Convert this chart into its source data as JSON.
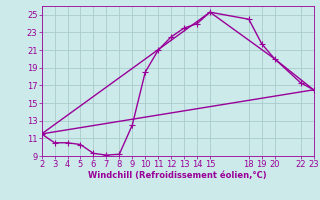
{
  "background_color": "#cceaea",
  "grid_color": "#aacccc",
  "line_color": "#990099",
  "marker": "+",
  "marker_size": 4,
  "line_width": 1.0,
  "xlabel": "Windchill (Refroidissement éolien,°C)",
  "xlabel_fontsize": 6.0,
  "tick_fontsize": 6.0,
  "tick_color": "#990099",
  "label_color": "#990099",
  "xlim": [
    2,
    23
  ],
  "ylim": [
    9,
    26
  ],
  "xticks": [
    2,
    3,
    4,
    5,
    6,
    7,
    8,
    9,
    10,
    11,
    12,
    13,
    14,
    15,
    18,
    19,
    20,
    22,
    23
  ],
  "yticks": [
    9,
    11,
    13,
    15,
    17,
    19,
    21,
    23,
    25
  ],
  "line1_x": [
    2,
    3,
    4,
    5,
    6,
    7,
    8,
    9,
    10,
    11,
    12,
    13,
    14,
    15,
    18,
    19,
    20,
    22,
    23
  ],
  "line1_y": [
    11.5,
    10.5,
    10.5,
    10.3,
    9.3,
    9.1,
    9.2,
    12.5,
    18.5,
    21.0,
    22.5,
    23.5,
    24.0,
    25.3,
    24.5,
    21.7,
    20.0,
    17.3,
    16.5
  ],
  "line2_x": [
    2,
    15,
    20,
    23
  ],
  "line2_y": [
    11.5,
    25.3,
    20.0,
    16.5
  ],
  "line3_x": [
    2,
    23
  ],
  "line3_y": [
    11.5,
    16.5
  ]
}
